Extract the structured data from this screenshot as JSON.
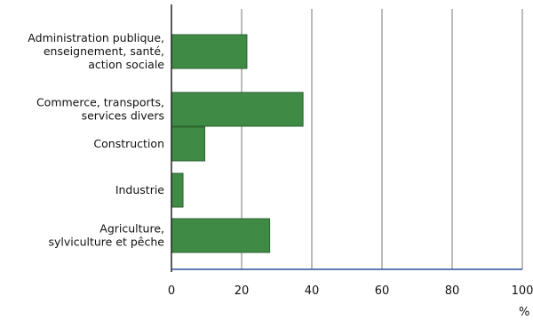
{
  "chart_data": {
    "type": "bar",
    "orientation": "horizontal",
    "categories": [
      [
        "Administration publique,",
        "enseignement, santé,",
        "action sociale"
      ],
      [
        "Commerce, transports,",
        "services divers"
      ],
      [
        "Construction"
      ],
      [
        "Industrie"
      ],
      [
        "Agriculture,",
        "sylviculture et pêche"
      ]
    ],
    "values": [
      21.5,
      37.5,
      9.5,
      3.3,
      28
    ],
    "xlim": [
      0,
      100
    ],
    "xticks": [
      "0",
      "20",
      "40",
      "60",
      "80",
      "100"
    ],
    "xunit": "%",
    "bar_color": "#3f8a45",
    "bar_stroke": "#2b6330",
    "grid": "vertical",
    "baseline_color": "#2d4f9e"
  }
}
